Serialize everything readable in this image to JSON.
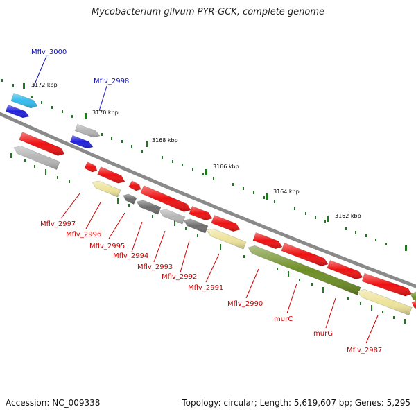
{
  "title": "Mycobacterium gilvum PYR-GCK, complete genome",
  "footer": {
    "accession": "Accession: NC_009338",
    "summary": "Topology: circular; Length: 5,619,607 bp; Genes: 5,295"
  },
  "colors": {
    "background": "#ffffff",
    "backbone": "#8a8a8a",
    "tick": "#1f7a1f",
    "forward_label": "#1010b0",
    "reverse_label": "#cc0000",
    "red_gene": "#ee1111",
    "blue_gene": "#2020dd",
    "cyan_gene": "#33bbee",
    "silver_gene": "#b5b5b5",
    "gray_gene": "#6e6e6e",
    "khaki_gene": "#ede39a",
    "olive_gene": "#6e8e25"
  },
  "scale_labels": [
    "3172 kbp",
    "3170 kbp",
    "3168 kbp",
    "3166 kbp",
    "3164 kbp",
    "3162 kbp"
  ],
  "forward_gene_labels": [
    "Mflv_3000",
    "Mflv_2998"
  ],
  "reverse_gene_labels": [
    "Mflv_2997",
    "Mflv_2996",
    "Mflv_2995",
    "Mflv_2994",
    "Mflv_2993",
    "Mflv_2992",
    "Mflv_2991",
    "Mflv_2990",
    "murC",
    "murG",
    "Mflv_2987"
  ]
}
